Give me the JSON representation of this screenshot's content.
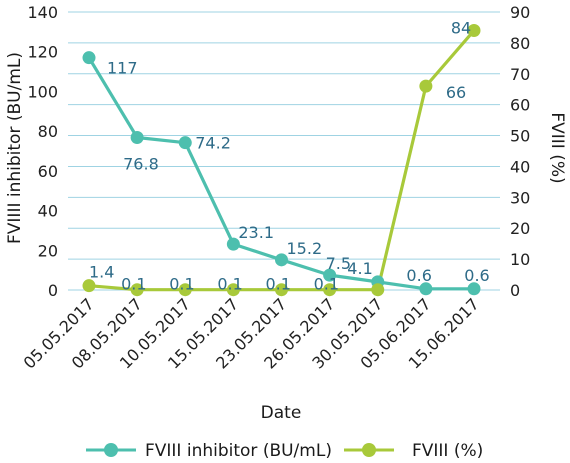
{
  "chart_data": {
    "type": "line",
    "categories": [
      "05.05.2017",
      "08.05.2017",
      "10.05.2017",
      "15.05.2017",
      "23.05.2017",
      "26.05.2017",
      "30.05.2017",
      "05.06.2017",
      "15.06.2017"
    ],
    "xlabel": "Date",
    "ylabel_left": "FVIIII inhibitor (BU/mL)",
    "ylabel_right": "FVIII (%)",
    "ylim_left": [
      0,
      140
    ],
    "ylim_right": [
      0,
      90
    ],
    "yticks_left": [
      "0",
      "20",
      "40",
      "60",
      "80",
      "100",
      "120",
      "140"
    ],
    "yticks_right": [
      "0",
      "10",
      "20",
      "30",
      "40",
      "50",
      "60",
      "70",
      "80",
      "90"
    ],
    "grid": true,
    "legend_position": "bottom",
    "series": [
      {
        "name": "FVIII inhibitor (BU/mL)",
        "axis": "left",
        "color": "#4dbfae",
        "values": [
          117,
          76.8,
          74.2,
          23.1,
          15.2,
          7.5,
          4.1,
          0.6,
          0.6
        ],
        "labels": [
          "117",
          "76.8",
          "74.2",
          "23.1",
          "15.2",
          "7.5",
          "4.1",
          "0.6",
          "0.6"
        ]
      },
      {
        "name": "FVIII (%)",
        "axis": "right",
        "color": "#a8c93a",
        "values": [
          1.4,
          0.1,
          0.1,
          0.1,
          0.1,
          0.1,
          0.1,
          66,
          84
        ],
        "labels": [
          "1.4",
          "0.1",
          "0.1",
          "0.1",
          "0.1",
          "0.1",
          "",
          "66",
          "84"
        ]
      }
    ]
  }
}
